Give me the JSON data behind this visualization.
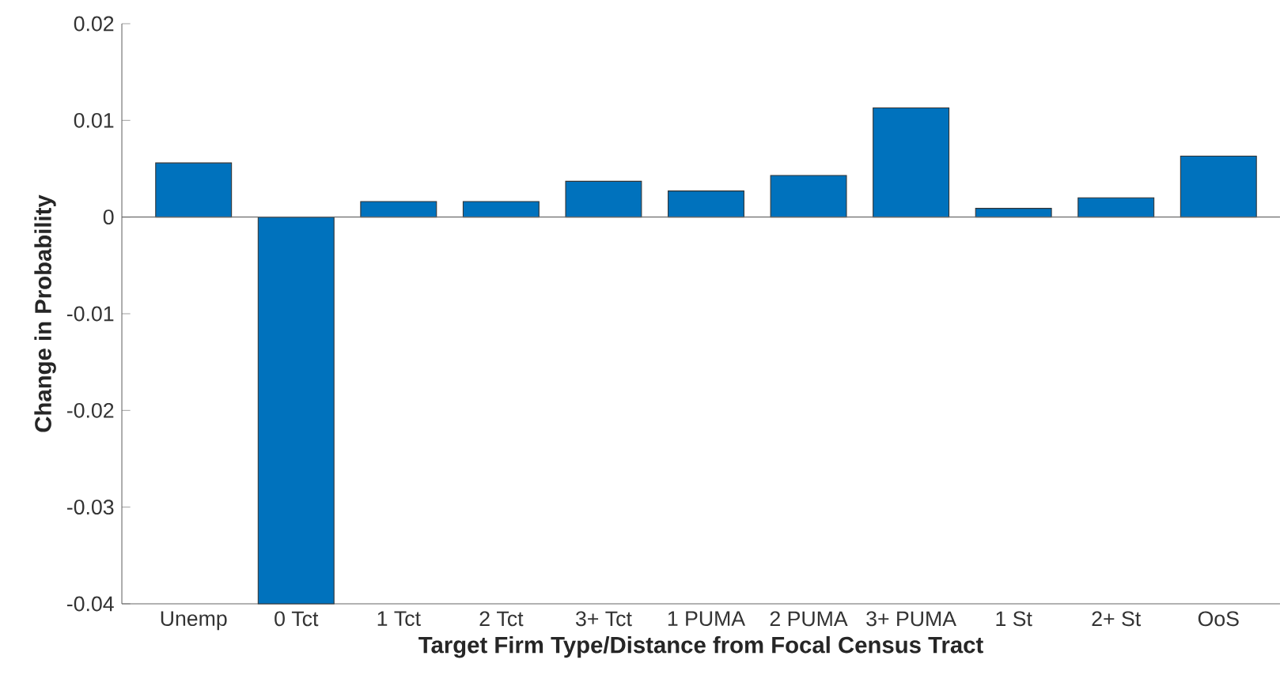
{
  "chart_data": {
    "type": "bar",
    "xlabel": "Target Firm Type/Distance from Focal Census Tract",
    "ylabel": "Change in Probability",
    "categories": [
      "Unemp",
      "0 Tct",
      "1 Tct",
      "2 Tct",
      "3+ Tct",
      "1 PUMA",
      "2 PUMA",
      "3+ PUMA",
      "1 St",
      "2+ St",
      "OoS"
    ],
    "values": [
      0.0056,
      -0.04,
      0.0016,
      0.0016,
      0.0037,
      0.0027,
      0.0043,
      0.0113,
      0.0009,
      0.002,
      0.0063
    ],
    "color": "#0072bd",
    "ylim": [
      -0.04,
      0.02
    ],
    "yticks": [
      -0.04,
      -0.03,
      -0.02,
      -0.01,
      0,
      0.01,
      0.02
    ]
  }
}
